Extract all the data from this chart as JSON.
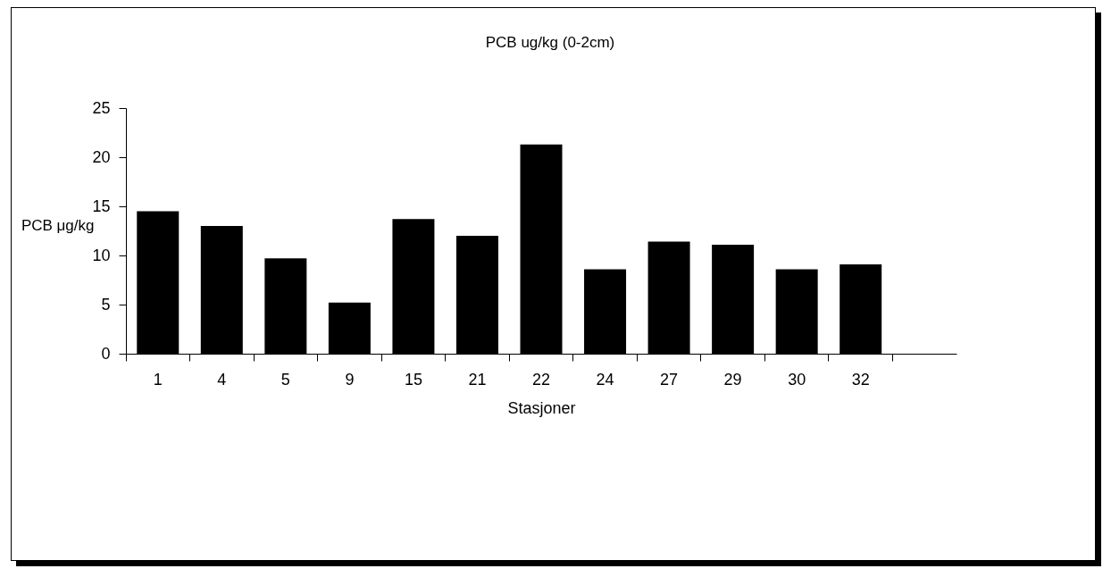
{
  "chart_data": {
    "type": "bar",
    "title": "PCB  ug/kg  (0-2cm)",
    "xlabel": "Stasjoner",
    "ylabel": "PCB μg/kg",
    "categories": [
      "1",
      "4",
      "5",
      "9",
      "15",
      "21",
      "22",
      "24",
      "27",
      "29",
      "30",
      "32",
      null
    ],
    "values": [
      14.5,
      13.0,
      9.7,
      5.2,
      13.7,
      12.0,
      21.3,
      8.6,
      11.4,
      11.1,
      8.6,
      9.1,
      null
    ],
    "color": "#000000",
    "ylim": [
      0,
      25
    ],
    "yticks": [
      0,
      5,
      10,
      15,
      20,
      25
    ],
    "grid": false
  }
}
